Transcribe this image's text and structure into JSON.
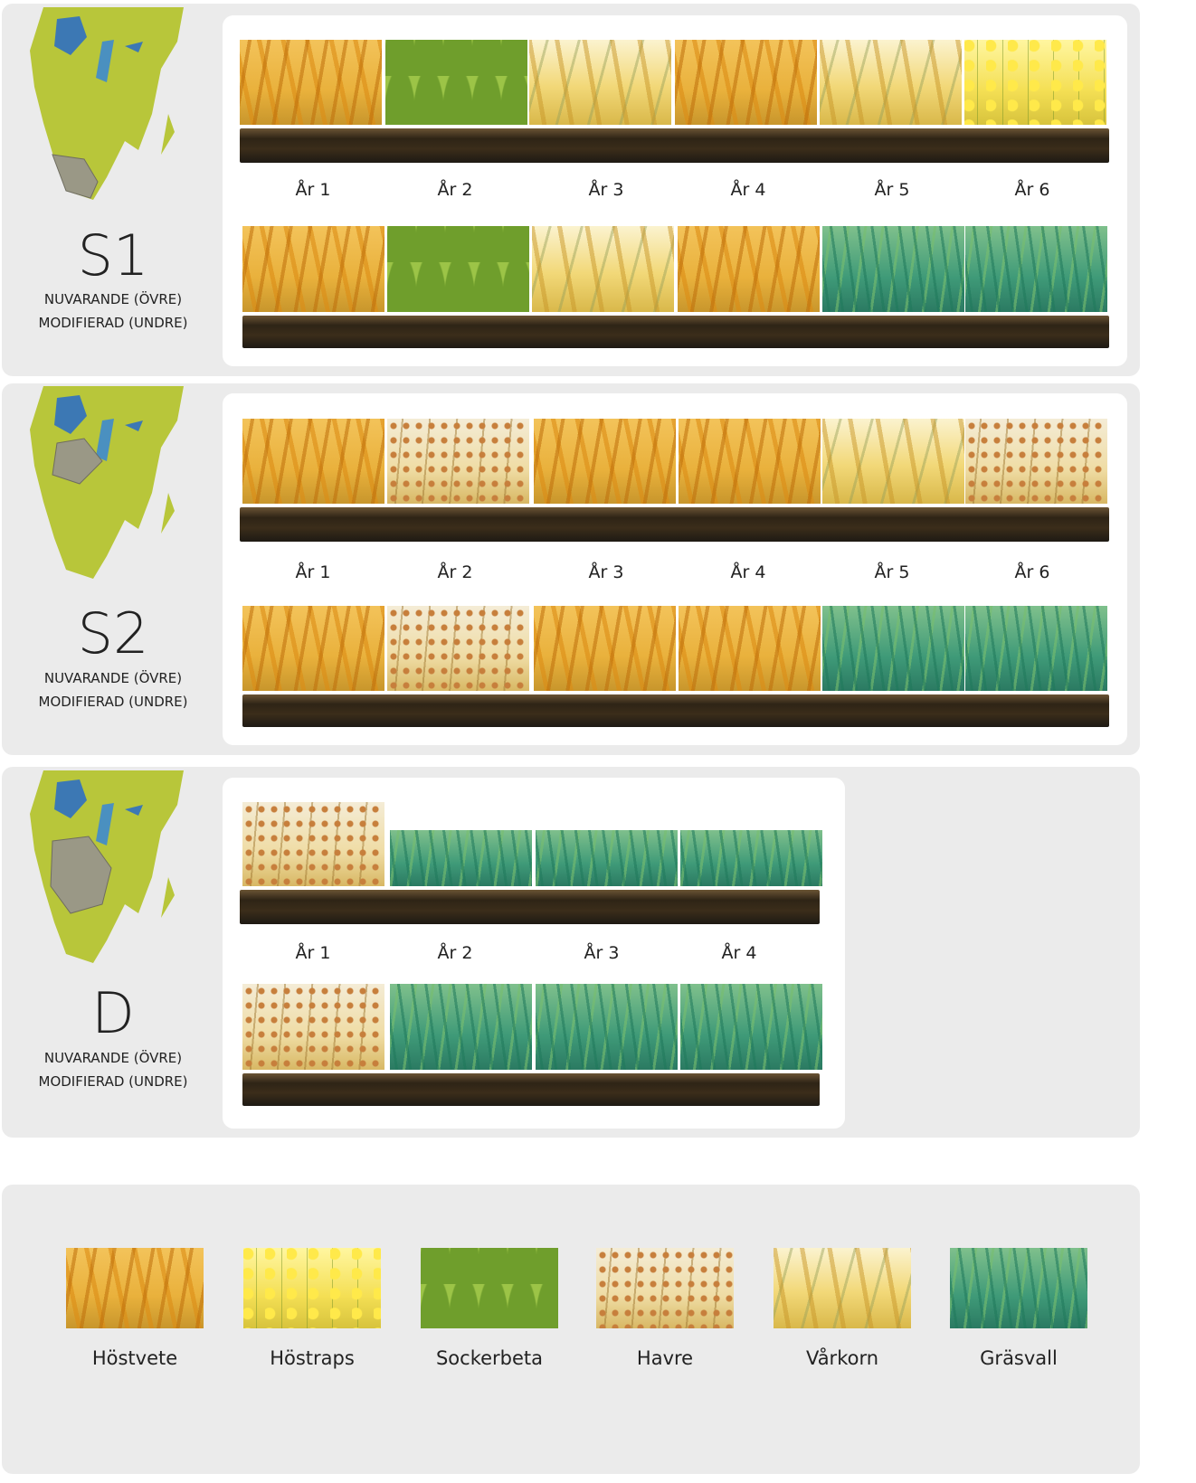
{
  "sections": [
    {
      "label": "S1",
      "current": "NUVARANDE (ÖVRE)",
      "modified": "MODIFIERAD (UNDRE)",
      "years": [
        "År 1",
        "År 2",
        "År 3",
        "År 4",
        "År 5",
        "År 6"
      ]
    },
    {
      "label": "S2",
      "current": "NUVARANDE (ÖVRE)",
      "modified": "MODIFIERAD (UNDRE)",
      "years": [
        "År 1",
        "År 2",
        "År 3",
        "År 4",
        "År 5",
        "År 6"
      ]
    },
    {
      "label": "D",
      "current": "NUVARANDE (ÖVRE)",
      "modified": "MODIFIERAD (UNDRE)",
      "years": [
        "År 1",
        "År 2",
        "År 3",
        "År 4"
      ]
    }
  ],
  "legend": [
    "Höstvete",
    "Höstraps",
    "Sockerbeta",
    "Havre",
    "Vårkorn",
    "Gräsvall"
  ]
}
